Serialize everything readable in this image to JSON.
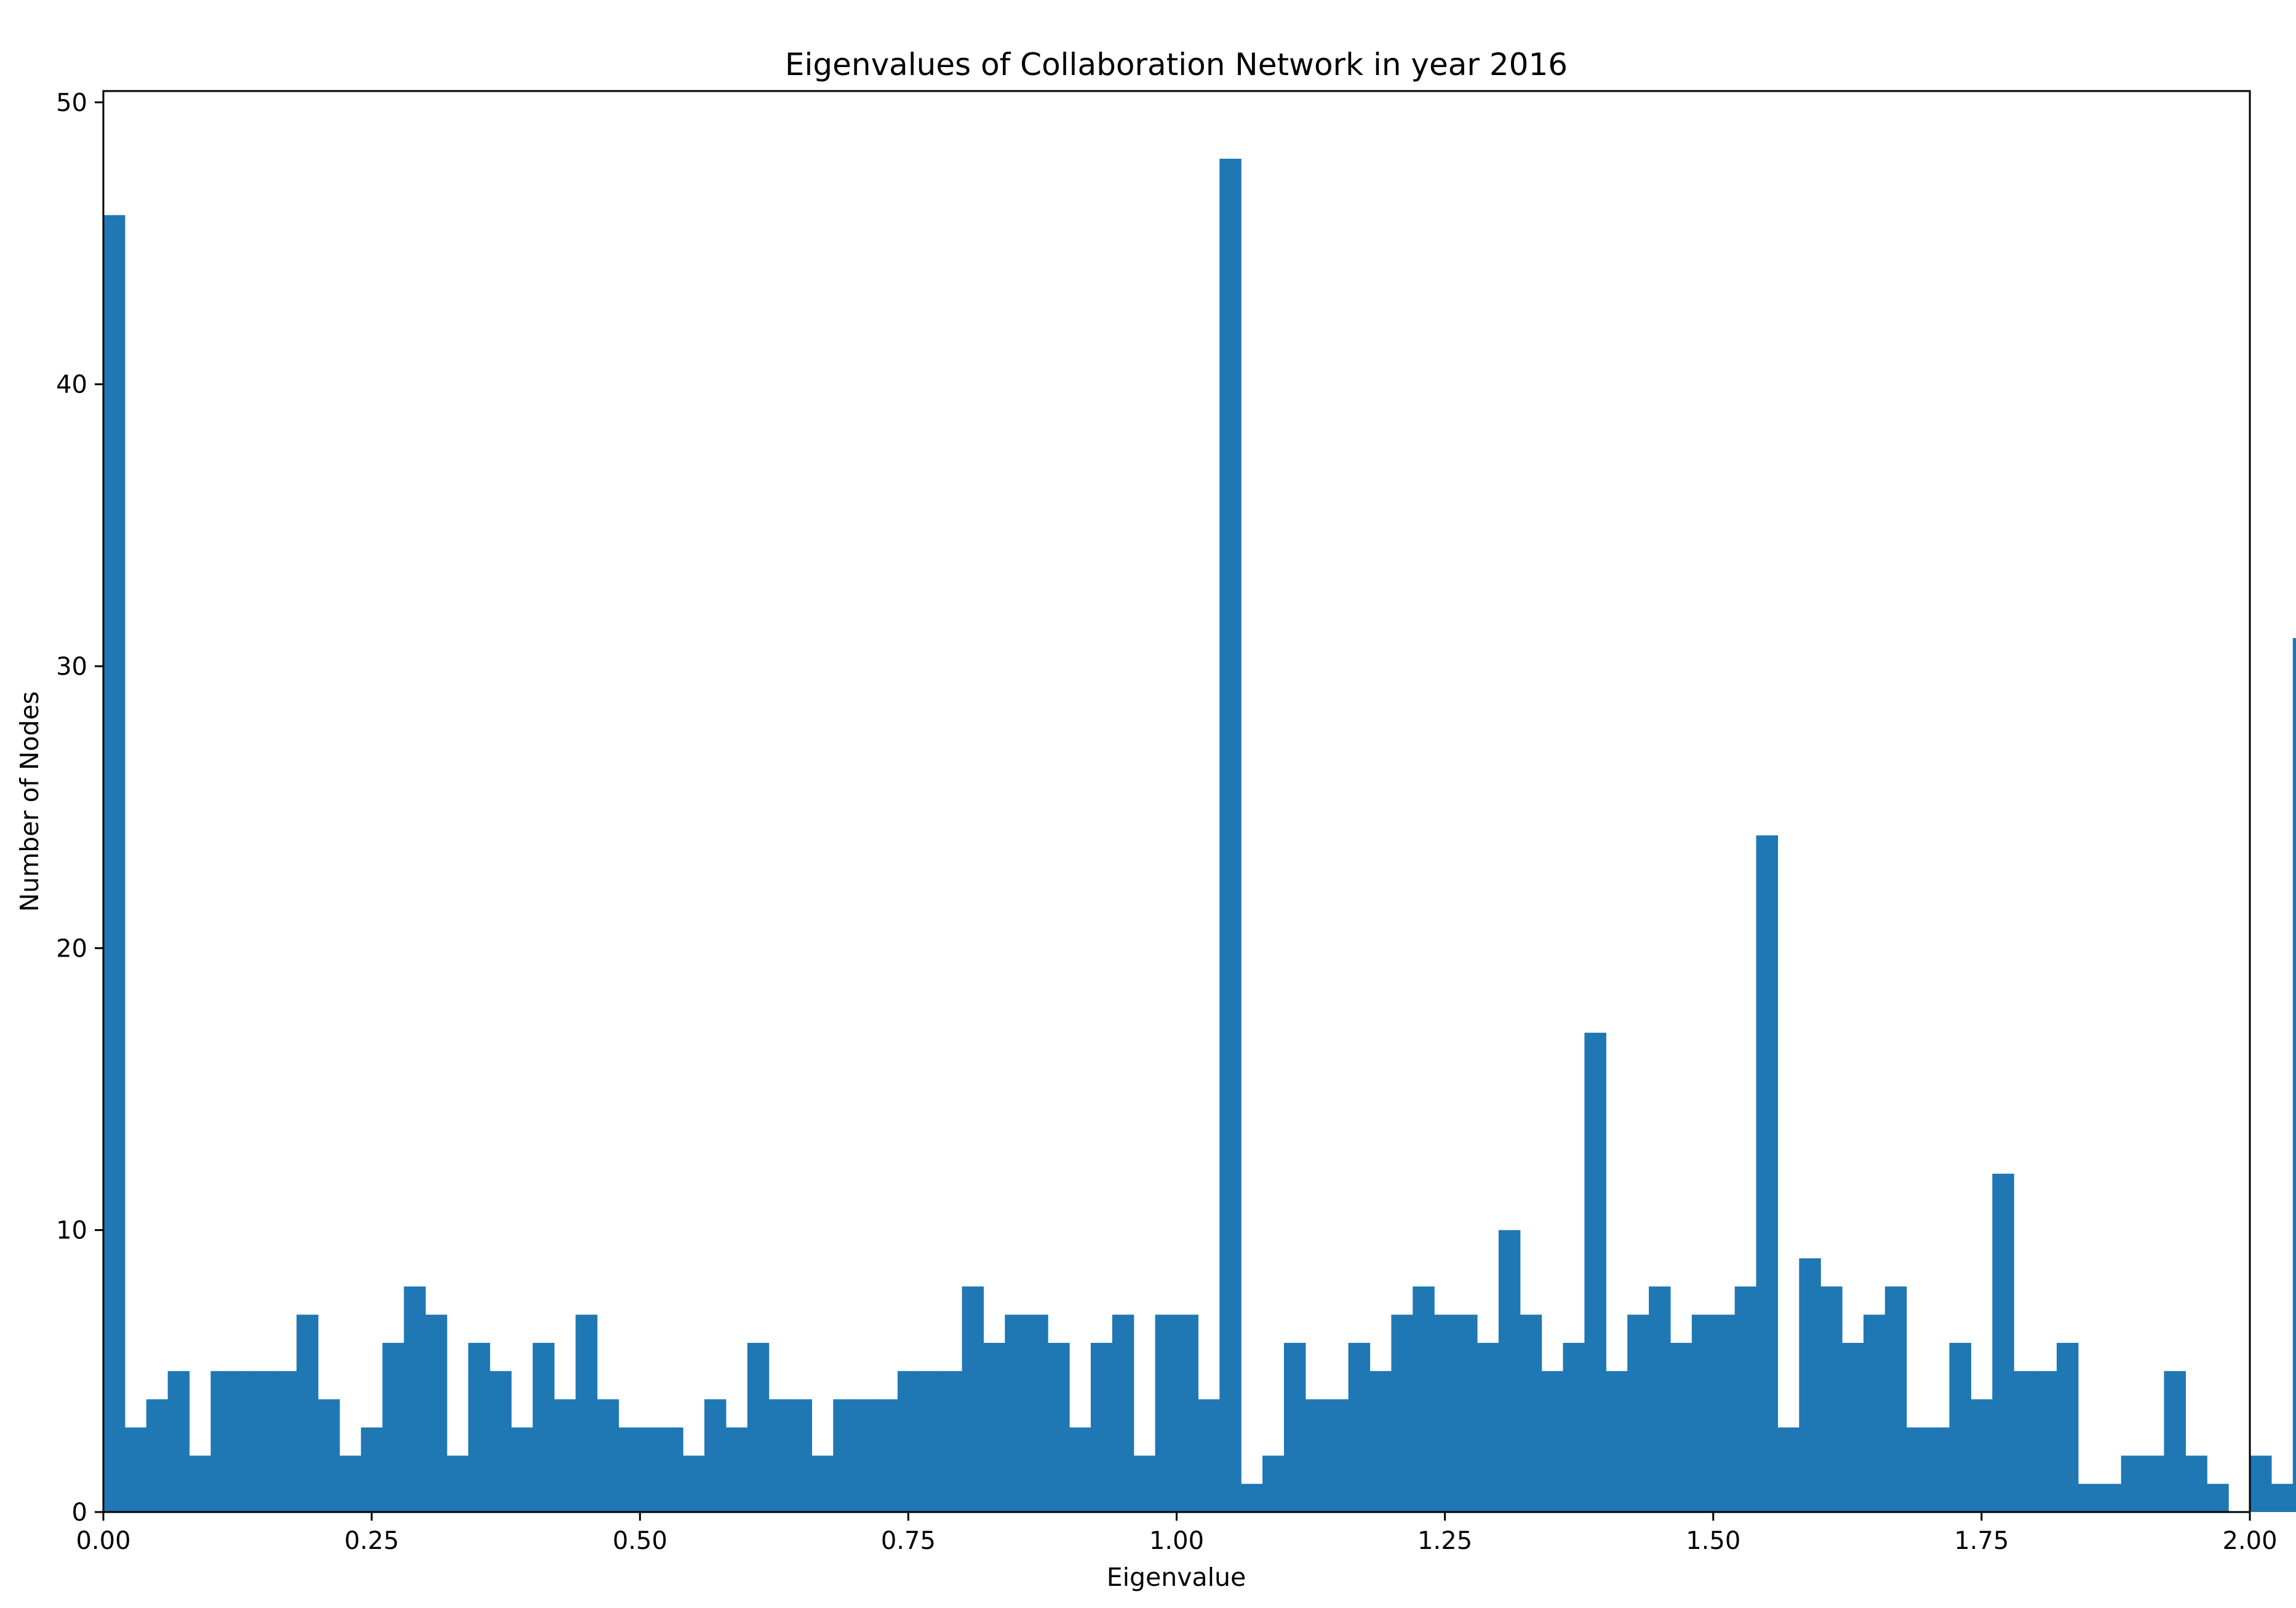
{
  "chart_data": {
    "type": "bar",
    "title": "Eigenvalues of Collaboration Network in year 2016",
    "xlabel": "Eigenvalue",
    "ylabel": "Number of Nodes",
    "xlim": [
      0,
      2
    ],
    "ylim": [
      0,
      50.4
    ],
    "xticks": [
      "0.00",
      "0.25",
      "0.50",
      "0.75",
      "1.00",
      "1.25",
      "1.50",
      "1.75",
      "2.00"
    ],
    "yticks": [
      "0",
      "10",
      "20",
      "30",
      "40",
      "50"
    ],
    "grid": false,
    "legend": "none",
    "bin_width": 0.02,
    "bin_start": 0,
    "values": [
      46,
      3,
      4,
      5,
      2,
      5,
      5,
      5,
      5,
      7,
      4,
      2,
      3,
      6,
      8,
      7,
      2,
      6,
      5,
      3,
      6,
      4,
      7,
      4,
      3,
      3,
      3,
      2,
      4,
      3,
      6,
      4,
      4,
      2,
      4,
      4,
      4,
      5,
      5,
      5,
      8,
      6,
      7,
      7,
      6,
      3,
      6,
      7,
      2,
      7,
      7,
      4,
      48,
      1,
      2,
      6,
      4,
      4,
      6,
      5,
      7,
      8,
      7,
      7,
      6,
      10,
      7,
      5,
      6,
      17,
      5,
      7,
      8,
      6,
      7,
      7,
      8,
      24,
      3,
      9,
      8,
      6,
      7,
      8,
      3,
      3,
      6,
      4,
      12,
      5,
      5,
      6,
      1,
      1,
      2,
      2,
      5,
      2,
      1,
      0,
      2,
      1,
      31
    ],
    "colors": {
      "bar": "#1f77b4",
      "axes": "#000000",
      "background": "#ffffff"
    }
  }
}
